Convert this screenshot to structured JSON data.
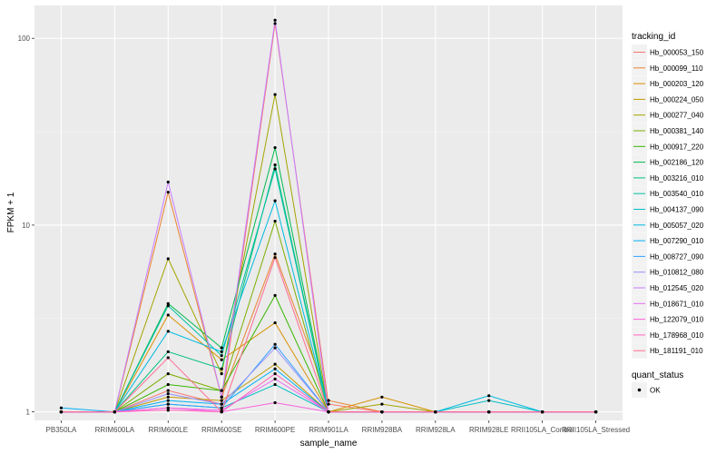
{
  "chart_data": {
    "type": "line",
    "xlabel": "sample_name",
    "ylabel": "FPKM + 1",
    "y_scale": "log",
    "ylim": [
      0.9,
      150
    ],
    "y_ticks": [
      {
        "value": 1,
        "label": "1"
      },
      {
        "value": 10,
        "label": "10"
      },
      {
        "value": 100,
        "label": "100"
      }
    ],
    "categories": [
      "PB350LA",
      "RRIM600LA",
      "RRIM600LE",
      "RRIM600SE",
      "RRIM600PE",
      "RRIM901LA",
      "RRIM928BA",
      "RRIM928LA",
      "RRIM928LE",
      "RRII105LA_Control",
      "RRII105LA_Stressed"
    ],
    "grid": true,
    "legend": {
      "title": "tracking_id",
      "placement": "right",
      "entries": [
        "Hb_000053_150",
        "Hb_000099_110",
        "Hb_000203_120",
        "Hb_000224_050",
        "Hb_000277_040",
        "Hb_000381_140",
        "Hb_000917_220",
        "Hb_002186_120",
        "Hb_003216_010",
        "Hb_003540_010",
        "Hb_004137_090",
        "Hb_005057_020",
        "Hb_007290_010",
        "Hb_008727_090",
        "Hb_010812_080",
        "Hb_012545_020",
        "Hb_018671_010",
        "Hb_122079_010",
        "Hb_178968_010",
        "Hb_181191_010"
      ]
    },
    "legend2": {
      "title": "quant_status",
      "entries": [
        "OK"
      ]
    },
    "series": [
      {
        "name": "Hb_000053_150",
        "color": "#F8766D",
        "values": [
          1,
          1,
          1.3,
          1.1,
          120,
          1.1,
          1,
          1,
          1,
          1,
          1
        ]
      },
      {
        "name": "Hb_000099_110",
        "color": "#EA8331",
        "values": [
          1,
          1,
          15,
          1.2,
          7,
          1.15,
          1,
          1,
          1,
          1,
          1
        ]
      },
      {
        "name": "Hb_000203_120",
        "color": "#D89000",
        "values": [
          1,
          1,
          3.3,
          1.9,
          3,
          1,
          1.2,
          1,
          1,
          1,
          1
        ]
      },
      {
        "name": "Hb_000224_050",
        "color": "#C09B00",
        "values": [
          1,
          1,
          1.2,
          1.15,
          1.8,
          1,
          1,
          1,
          1,
          1,
          1
        ]
      },
      {
        "name": "Hb_000277_040",
        "color": "#A3A500",
        "values": [
          1,
          1,
          6.6,
          1.6,
          50,
          1,
          1.1,
          1,
          1,
          1,
          1
        ]
      },
      {
        "name": "Hb_000381_140",
        "color": "#7CAE00",
        "values": [
          1,
          1,
          1.6,
          1.3,
          10.5,
          1,
          1,
          1,
          1,
          1,
          1
        ]
      },
      {
        "name": "Hb_000917_220",
        "color": "#39B600",
        "values": [
          1,
          1,
          1.4,
          1.3,
          4.2,
          1,
          1,
          1,
          1,
          1,
          1
        ]
      },
      {
        "name": "Hb_002186_120",
        "color": "#00BB4E",
        "values": [
          1,
          1,
          3.8,
          2.2,
          26,
          1,
          1,
          1,
          1,
          1,
          1
        ]
      },
      {
        "name": "Hb_003216_010",
        "color": "#00BF7D",
        "values": [
          1,
          1,
          2.1,
          1.7,
          21,
          1,
          1,
          1,
          1,
          1,
          1
        ]
      },
      {
        "name": "Hb_003540_010",
        "color": "#00C1A3",
        "values": [
          1,
          1,
          3.7,
          2,
          20,
          1,
          1,
          1,
          1,
          1,
          1
        ]
      },
      {
        "name": "Hb_004137_090",
        "color": "#00BFC4",
        "values": [
          1,
          1,
          1.1,
          1.05,
          1.4,
          1,
          1,
          1,
          1.15,
          1,
          1
        ]
      },
      {
        "name": "Hb_005057_020",
        "color": "#00BAE0",
        "values": [
          1,
          1,
          2.7,
          2.1,
          13.5,
          1,
          1,
          1,
          1.22,
          1,
          1
        ]
      },
      {
        "name": "Hb_007290_010",
        "color": "#00B0F6",
        "values": [
          1.05,
          1,
          1.15,
          1.1,
          1.7,
          1,
          1,
          1,
          1,
          1,
          1
        ]
      },
      {
        "name": "Hb_008727_090",
        "color": "#35A2FF",
        "values": [
          1,
          1,
          1.1,
          1.05,
          2.3,
          1,
          1,
          1,
          1,
          1,
          1
        ]
      },
      {
        "name": "Hb_010812_080",
        "color": "#9590FF",
        "values": [
          1,
          1,
          1.25,
          1.1,
          2.2,
          1,
          1,
          1,
          1,
          1,
          1
        ]
      },
      {
        "name": "Hb_012545_020",
        "color": "#C77CFF",
        "values": [
          1,
          1,
          17,
          1.2,
          125,
          1,
          1,
          1,
          1,
          1,
          1
        ]
      },
      {
        "name": "Hb_018671_010",
        "color": "#E76BF3",
        "values": [
          1,
          1,
          1.05,
          1.02,
          1.5,
          1,
          1,
          1,
          1,
          1,
          1
        ]
      },
      {
        "name": "Hb_122079_010",
        "color": "#FA62DB",
        "values": [
          1,
          1,
          1.05,
          1,
          1.12,
          1,
          1,
          1,
          1,
          1,
          1
        ]
      },
      {
        "name": "Hb_178968_010",
        "color": "#FF62BC",
        "values": [
          1,
          1,
          1.02,
          1,
          1.6,
          1,
          1,
          1,
          1,
          1,
          1
        ]
      },
      {
        "name": "Hb_181191_010",
        "color": "#FF6C91",
        "values": [
          1,
          1,
          1.95,
          1,
          6.7,
          1,
          1,
          1,
          1,
          1,
          1
        ]
      }
    ]
  }
}
